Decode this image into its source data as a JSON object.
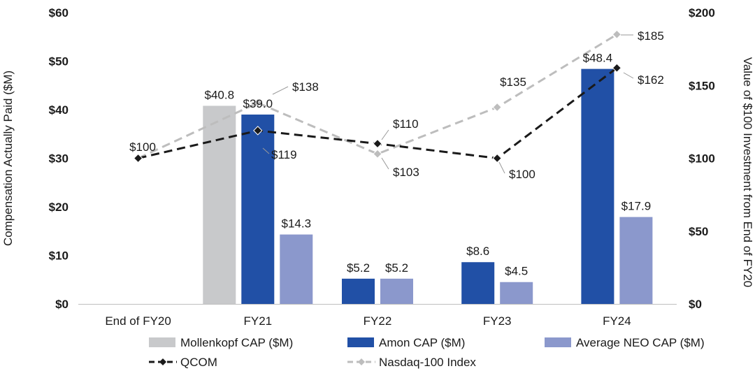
{
  "chart_data": {
    "type": "bar+line",
    "categories": [
      "End of FY20",
      "FY21",
      "FY22",
      "FY23",
      "FY24"
    ],
    "left_axis": {
      "label": "Compensation Actually Paid ($M)",
      "min": 0,
      "max": 60,
      "step": 10,
      "tick_labels": [
        "$0",
        "$10",
        "$20",
        "$30",
        "$40",
        "$50",
        "$60"
      ]
    },
    "right_axis": {
      "label": "Value of $100 Investment from End of FY20",
      "min": 0,
      "max": 200,
      "step": 50,
      "tick_labels": [
        "$0",
        "$50",
        "$100",
        "$150",
        "$200"
      ]
    },
    "bar_series": [
      {
        "name": "Mollenkopf CAP ($M)",
        "color": "#c8c9cb",
        "values": [
          null,
          40.8,
          null,
          null,
          null
        ],
        "labels": [
          null,
          "$40.8",
          null,
          null,
          null
        ]
      },
      {
        "name": "Amon CAP ($M)",
        "color": "#2150a6",
        "values": [
          null,
          39.0,
          5.2,
          8.6,
          48.4
        ],
        "labels": [
          null,
          "$39.0",
          "$5.2",
          "$8.6",
          "$48.4"
        ]
      },
      {
        "name": "Average NEO CAP ($M)",
        "color": "#8b98cc",
        "values": [
          null,
          14.3,
          5.2,
          4.5,
          17.9
        ],
        "labels": [
          null,
          "$14.3",
          "$5.2",
          "$4.5",
          "$17.9"
        ]
      }
    ],
    "line_series": [
      {
        "name": "QCOM",
        "color": "#1a1a1a",
        "style": "dashed",
        "marker": "diamond",
        "values": [
          100,
          119,
          110,
          100,
          162
        ],
        "labels": [
          null,
          "$119",
          "$110",
          "$100",
          "$162"
        ]
      },
      {
        "name": "Nasdaq-100 Index",
        "color": "#bdbdbd",
        "style": "dashed",
        "marker": "diamond",
        "values": [
          100,
          138,
          103,
          135,
          185
        ],
        "labels": [
          "$100",
          "$138",
          "$103",
          "$135",
          "$185"
        ]
      }
    ]
  }
}
